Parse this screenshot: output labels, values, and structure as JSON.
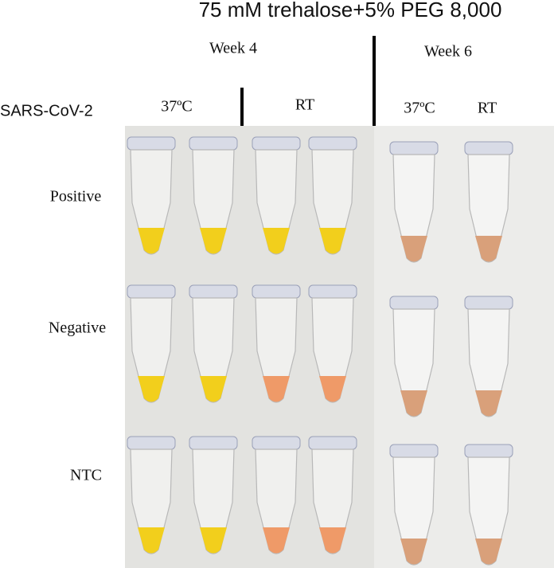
{
  "header": {
    "title": "75 mM trehalose+5% PEG 8,000"
  },
  "groups": [
    {
      "label": "Week 4",
      "conditions": [
        "37ºC",
        "RT"
      ]
    },
    {
      "label": "Week 6",
      "conditions": [
        "37ºC",
        "RT"
      ]
    }
  ],
  "row_header": "SARS-CoV-2",
  "rows": [
    "Positive",
    "Negative",
    "NTC"
  ]
}
